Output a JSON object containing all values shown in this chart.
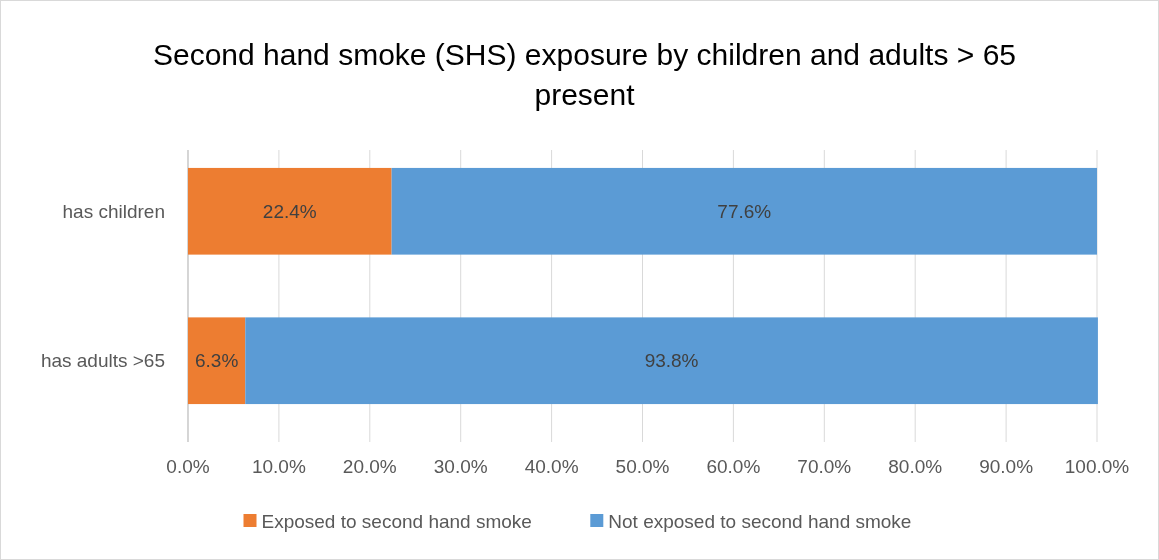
{
  "chart_data": {
    "type": "bar",
    "orientation": "horizontal",
    "stacked": true,
    "title": "Second hand smoke (SHS) exposure by children and adults > 65 present",
    "categories": [
      "has children",
      "has adults  >65"
    ],
    "series": [
      {
        "name": "Exposed to second hand smoke",
        "color": "#ed7d31",
        "values": [
          22.4,
          6.3
        ],
        "value_labels": [
          "22.4%",
          "6.3%"
        ]
      },
      {
        "name": "Not exposed to second hand smoke",
        "color": "#5b9bd5",
        "values": [
          77.6,
          93.8
        ],
        "value_labels": [
          "77.6%",
          "93.8%"
        ]
      }
    ],
    "xlim": [
      0,
      100
    ],
    "xticks": [
      {
        "value": 0,
        "label": "0.0%"
      },
      {
        "value": 10,
        "label": "10.0%"
      },
      {
        "value": 20,
        "label": "20.0%"
      },
      {
        "value": 30,
        "label": "30.0%"
      },
      {
        "value": 40,
        "label": "40.0%"
      },
      {
        "value": 50,
        "label": "50.0%"
      },
      {
        "value": 60,
        "label": "60.0%"
      },
      {
        "value": 70,
        "label": "70.0%"
      },
      {
        "value": 80,
        "label": "80.0%"
      },
      {
        "value": 90,
        "label": "90.0%"
      },
      {
        "value": 100,
        "label": "100.0%"
      }
    ],
    "grid": "x",
    "legend": "bottom"
  }
}
